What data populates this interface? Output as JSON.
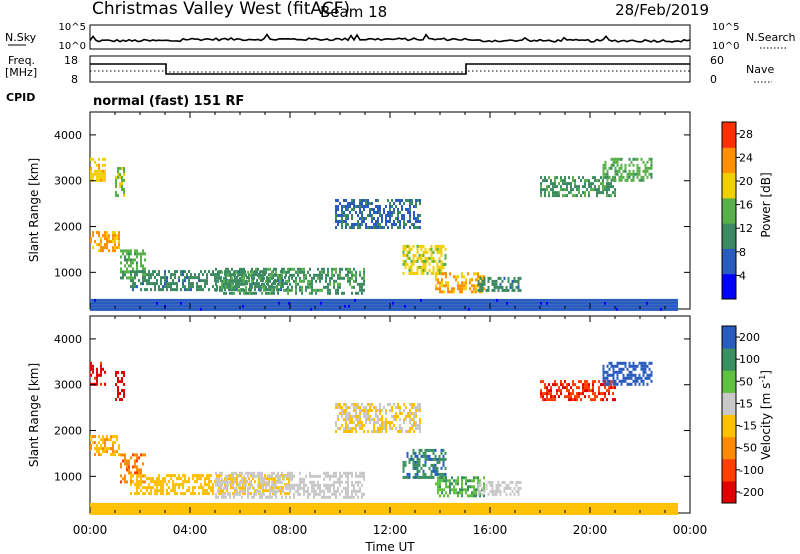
{
  "header": {
    "title": "Christmas Valley West (fitACF)",
    "beam": "Beam 18",
    "date": "28/Feb/2019"
  },
  "panels": {
    "nsky": {
      "label": "N.Sky",
      "right_label": "N.Search",
      "ticks_left": [
        "10^5",
        "10^0"
      ],
      "ticks_right": [
        "10^5",
        "10^0"
      ]
    },
    "freq": {
      "label_line1": "Freq.",
      "label_line2": "[MHz]",
      "right_label": "Nave",
      "ticks_left": [
        "18",
        "8"
      ],
      "ticks_right": [
        "60",
        "0"
      ]
    },
    "cpid": {
      "label": "CPID",
      "text": "normal (fast) 151 RF"
    }
  },
  "chart_data": [
    {
      "type": "heatmap",
      "name": "power",
      "ylabel": "Slant Range [km]",
      "ylim": [
        200,
        4500
      ],
      "yticks": [
        "1000",
        "2000",
        "3000",
        "4000"
      ],
      "xlim": [
        0,
        24
      ],
      "colorbar": {
        "label": "Power [dB]",
        "ticks": [
          "4",
          "8",
          "12",
          "16",
          "20",
          "24",
          "28"
        ],
        "range": [
          0,
          30
        ],
        "colors": [
          "#0000ff",
          "#2a5bbf",
          "#3c8a62",
          "#58b04a",
          "#f0d000",
          "#ff9000",
          "#ff3000"
        ]
      },
      "patches": [
        {
          "t0": 0.0,
          "t1": 0.6,
          "r0": 3000,
          "r1": 3500,
          "level": 20
        },
        {
          "t0": 1.0,
          "t1": 1.4,
          "r0": 2700,
          "r1": 3300,
          "level": 16
        },
        {
          "t0": 0.0,
          "t1": 1.2,
          "r0": 1450,
          "r1": 1900,
          "level": 22
        },
        {
          "t0": 1.2,
          "t1": 2.2,
          "r0": 900,
          "r1": 1500,
          "level": 14
        },
        {
          "t0": 1.6,
          "t1": 8.0,
          "r0": 600,
          "r1": 1050,
          "level": 10
        },
        {
          "t0": 5.0,
          "t1": 11.0,
          "r0": 550,
          "r1": 1100,
          "level": 12
        },
        {
          "t0": 9.8,
          "t1": 13.2,
          "r0": 2000,
          "r1": 2600,
          "level": 8
        },
        {
          "t0": 12.5,
          "t1": 14.2,
          "r0": 1000,
          "r1": 1600,
          "level": 18
        },
        {
          "t0": 13.8,
          "t1": 15.8,
          "r0": 600,
          "r1": 1000,
          "level": 22
        },
        {
          "t0": 15.5,
          "t1": 17.2,
          "r0": 600,
          "r1": 900,
          "level": 10
        },
        {
          "t0": 18.0,
          "t1": 21.0,
          "r0": 2700,
          "r1": 3100,
          "level": 12
        },
        {
          "t0": 20.5,
          "t1": 22.5,
          "r0": 3000,
          "r1": 3500,
          "level": 14
        },
        {
          "t0": 0.0,
          "t1": 23.5,
          "r0": 200,
          "r1": 420,
          "level": 6
        }
      ]
    },
    {
      "type": "heatmap",
      "name": "velocity",
      "ylabel": "Slant Range [km]",
      "ylim": [
        200,
        4500
      ],
      "yticks": [
        "1000",
        "2000",
        "3000",
        "4000"
      ],
      "xlim": [
        0,
        24
      ],
      "xticks": [
        "00:00",
        "04:00",
        "08:00",
        "12:00",
        "16:00",
        "20:00",
        "00:00"
      ],
      "xlabel": "Time UT",
      "colorbar": {
        "label_main": "Velocity [m s",
        "label_sup": "-1",
        "label_end": "]",
        "ticks": [
          "200",
          "100",
          "50",
          "15",
          "-15",
          "-50",
          "-100",
          "-200"
        ],
        "range": [
          -250,
          250
        ],
        "colors": [
          "#e00000",
          "#ff4000",
          "#ff8c00",
          "#ffc000",
          "#c8c8c8",
          "#60c040",
          "#3a9060",
          "#2a5bbf"
        ]
      },
      "patches": [
        {
          "t0": 0.0,
          "t1": 0.6,
          "r0": 3000,
          "r1": 3500,
          "level": -200
        },
        {
          "t0": 1.0,
          "t1": 1.4,
          "r0": 2700,
          "r1": 3300,
          "level": -220
        },
        {
          "t0": 0.0,
          "t1": 1.2,
          "r0": 1450,
          "r1": 1900,
          "level": -60
        },
        {
          "t0": 1.2,
          "t1": 2.2,
          "r0": 900,
          "r1": 1500,
          "level": -110
        },
        {
          "t0": 1.6,
          "t1": 8.0,
          "r0": 600,
          "r1": 1050,
          "level": -40
        },
        {
          "t0": 5.0,
          "t1": 11.0,
          "r0": 550,
          "r1": 1100,
          "level": 40
        },
        {
          "t0": 9.8,
          "t1": 13.2,
          "r0": 2000,
          "r1": 2600,
          "level": 0
        },
        {
          "t0": 12.5,
          "t1": 14.2,
          "r0": 1000,
          "r1": 1600,
          "level": 180
        },
        {
          "t0": 13.8,
          "t1": 15.8,
          "r0": 600,
          "r1": 1000,
          "level": 120
        },
        {
          "t0": 15.5,
          "t1": 17.2,
          "r0": 600,
          "r1": 900,
          "level": 30
        },
        {
          "t0": 18.0,
          "t1": 21.0,
          "r0": 2700,
          "r1": 3100,
          "level": -180
        },
        {
          "t0": 20.5,
          "t1": 22.5,
          "r0": 3000,
          "r1": 3500,
          "level": 210
        },
        {
          "t0": 0.0,
          "t1": 23.5,
          "r0": 200,
          "r1": 420,
          "level": -30
        }
      ]
    }
  ]
}
